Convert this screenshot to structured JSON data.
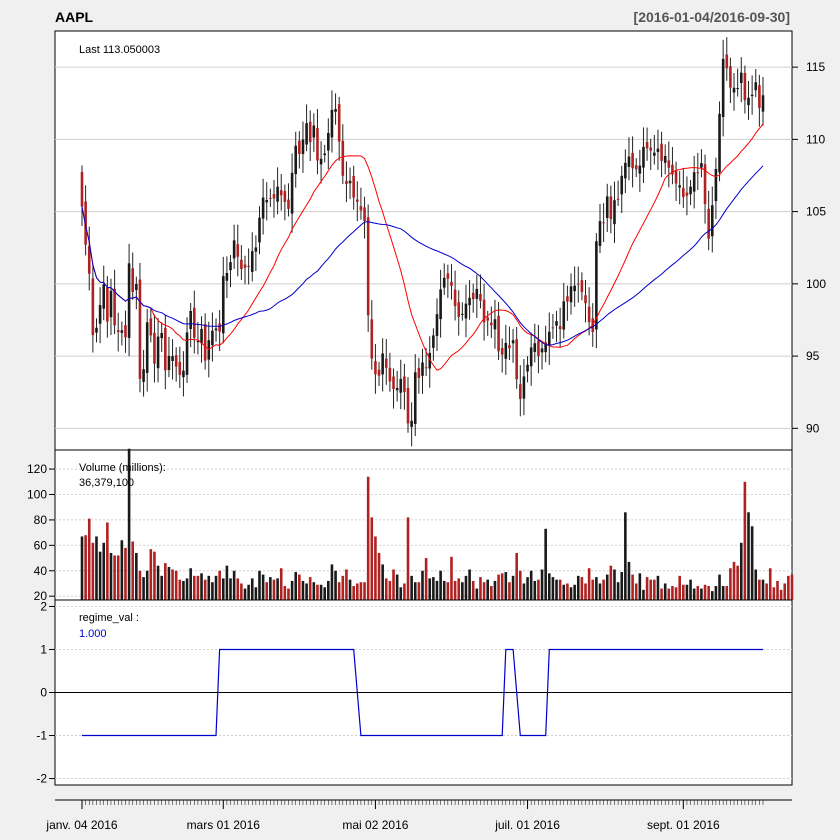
{
  "header": {
    "symbol": "AAPL",
    "range": "[2016-01-04/2016-09-30]"
  },
  "colors": {
    "up": "#1a1a1a",
    "down": "#b02222",
    "sma_fast": "#ff0000",
    "sma_slow": "#0000cc",
    "regime": "#0000cc",
    "grid": "#cfcfcf"
  },
  "chart_data": [
    {
      "type": "candlestick",
      "panel": "price",
      "label": "Last 113.050003",
      "ylim": [
        88.5,
        117.5
      ],
      "yticks": [
        90,
        95,
        100,
        105,
        110,
        115
      ],
      "grid": true,
      "x_ticks": [
        {
          "label": "janv. 04 2016",
          "index": 0
        },
        {
          "label": "mars 01 2016",
          "index": 39
        },
        {
          "label": "mai 02 2016",
          "index": 81
        },
        {
          "label": "juil. 01 2016",
          "index": 123
        },
        {
          "label": "sept. 01 2016",
          "index": 166
        }
      ],
      "n_periods": 189,
      "close": [
        105.35,
        102.71,
        100.7,
        96.45,
        96.96,
        98.53,
        99.96,
        97.39,
        99.52,
        97.13,
        96.66,
        96.79,
        96.3,
        101.42,
        99.44,
        99.99,
        93.42,
        94.09,
        97.34,
        96.43,
        94.48,
        96.35,
        96.6,
        94.02,
        95.01,
        94.99,
        94.27,
        93.7,
        93.99,
        96.64,
        98.12,
        96.26,
        96.04,
        96.88,
        94.69,
        96.1,
        96.76,
        96.91,
        96.69,
        100.53,
        100.75,
        101.5,
        103.01,
        101.87,
        101.03,
        101.12,
        101.17,
        102.26,
        102.52,
        104.58,
        105.97,
        105.8,
        105.92,
        105.91,
        106.72,
        106.13,
        105.67,
        105.19,
        107.68,
        109.56,
        108.99,
        109.99,
        111.12,
        109.81,
        110.96,
        108.54,
        108.66,
        109.02,
        110.44,
        112.04,
        112.1,
        109.85,
        107.48,
        106.91,
        107.13,
        105.97,
        105.68,
        105.08,
        104.35,
        97.82,
        94.83,
        93.74,
        93.64,
        95.18,
        94.19,
        93.24,
        92.72,
        92.79,
        93.42,
        92.51,
        90.34,
        90.52,
        93.88,
        93.49,
        94.56,
        94.2,
        95.22,
        96.43,
        97.9,
        99.62,
        100.41,
        100.35,
        99.86,
        98.46,
        97.72,
        97.92,
        98.63,
        99.03,
        98.94,
        99.65,
        98.83,
        97.34,
        97.46,
        97.14,
        97.55,
        95.33,
        95.1,
        95.91,
        95.55,
        96.1,
        93.4,
        92.04,
        93.59,
        94.4,
        95.6,
        95.89,
        94.99,
        95.53,
        95.94,
        96.68,
        96.98,
        97.42,
        96.87,
        98.79,
        98.78,
        99.83,
        99.87,
        99.96,
        99.43,
        98.66,
        97.34,
        96.67,
        102.95,
        104.34,
        104.21,
        106.05,
        104.48,
        105.79,
        105.87,
        107.48,
        108.37,
        108.81,
        108.0,
        107.93,
        108.18,
        109.48,
        109.38,
        109.22,
        109.08,
        109.36,
        108.51,
        108.85,
        108.03,
        107.57,
        106.94,
        106.82,
        106.0,
        106.1,
        106.73,
        107.73,
        107.7,
        108.36,
        105.52,
        103.13,
        105.44,
        107.95,
        111.77,
        115.57,
        114.92,
        113.58,
        113.57,
        113.55,
        114.62,
        112.71,
        112.88,
        113.09,
        113.95,
        112.18,
        113.05
      ],
      "open_offset_note": "",
      "series": [
        {
          "name": "",
          "kind": "sma20"
        },
        {
          "name": "",
          "kind": "sma50"
        }
      ]
    },
    {
      "type": "bar",
      "panel": "volume",
      "label": "Volume (millions):",
      "last_value": "36,379,100",
      "ylim": [
        17,
        135
      ],
      "yticks": [
        20,
        40,
        60,
        80,
        100,
        120
      ],
      "grid": true,
      "values": [
        67,
        68,
        81,
        62,
        67,
        55,
        62,
        78,
        54,
        52,
        52,
        64,
        58,
        136,
        63,
        54,
        40,
        35,
        40,
        57,
        55,
        44,
        36,
        46,
        43,
        41,
        40,
        33,
        32,
        34,
        42,
        36,
        36,
        38,
        33,
        36,
        31,
        36,
        40,
        34,
        44,
        34,
        40,
        34,
        30,
        26,
        29,
        34,
        27,
        40,
        37,
        31,
        35,
        33,
        34,
        42,
        28,
        26,
        32,
        39,
        37,
        32,
        30,
        35,
        31,
        29,
        29,
        27,
        32,
        45,
        40,
        31,
        36,
        41,
        33,
        28,
        30,
        31,
        31,
        114,
        82,
        67,
        54,
        45,
        34,
        32,
        41,
        37,
        27,
        30,
        82,
        36,
        31,
        31,
        40,
        50,
        34,
        35,
        32,
        40,
        32,
        31,
        51,
        32,
        34,
        31,
        36,
        41,
        32,
        26,
        35,
        31,
        33,
        28,
        32,
        37,
        38,
        39,
        31,
        36,
        54,
        40,
        30,
        35,
        40,
        32,
        33,
        41,
        73,
        38,
        35,
        33,
        33,
        29,
        30,
        27,
        29,
        36,
        35,
        30,
        42,
        33,
        35,
        30,
        33,
        37,
        44,
        41,
        31,
        39,
        86,
        47,
        37,
        30,
        38,
        25,
        35,
        33,
        33,
        36,
        26,
        30,
        26,
        28,
        27,
        36,
        29,
        29,
        33,
        26,
        28,
        26,
        29,
        28,
        24,
        28,
        37,
        28,
        28,
        42,
        47,
        44,
        62,
        110,
        86,
        75,
        41,
        33,
        33,
        30,
        42,
        27,
        32,
        25,
        30,
        36,
        37
      ]
    },
    {
      "type": "line",
      "panel": "regime",
      "label": "regime_val :",
      "last_value": "1.000",
      "ylim": [
        -2.15,
        2.15
      ],
      "yticks": [
        -2,
        -1,
        0,
        1,
        2
      ],
      "grid": true,
      "segments": [
        {
          "from": 0,
          "to": 37,
          "value": -1
        },
        {
          "from": 38,
          "to": 75,
          "value": 1
        },
        {
          "from": 77,
          "to": 116,
          "value": -1
        },
        {
          "from": 117,
          "to": 119,
          "value": 1
        },
        {
          "from": 121,
          "to": 128,
          "value": -1
        },
        {
          "from": 129,
          "to": 188,
          "value": 1
        }
      ]
    }
  ]
}
